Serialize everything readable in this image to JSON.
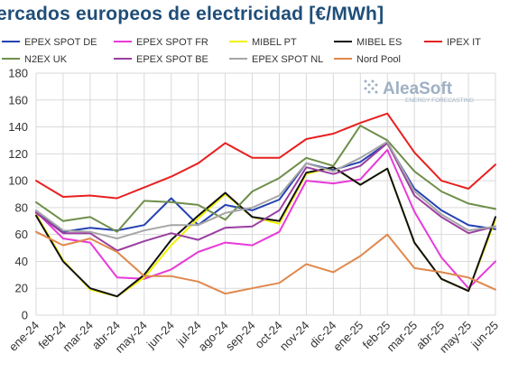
{
  "title": "ercados europeos de electricidad [€/MWh]",
  "logo": {
    "name": "AleaSoft",
    "tagline": "ENERGY FORECASTING",
    "icon": "dot-grid-icon"
  },
  "chart_data": {
    "type": "line",
    "title": "ercados europeos de electricidad [€/MWh]",
    "xlabel": "",
    "ylabel": "",
    "ylim": [
      0,
      180
    ],
    "yticks": [
      0,
      20,
      40,
      60,
      80,
      100,
      120,
      140,
      160,
      180
    ],
    "grid": true,
    "legend_position": "top",
    "categories": [
      "ene-24",
      "feb-24",
      "mar-24",
      "abr-24",
      "may-24",
      "jun-24",
      "jul-24",
      "ago-24",
      "sep-24",
      "oct-24",
      "nov-24",
      "dic-24",
      "ene-25",
      "feb-25",
      "mar-25",
      "abr-25",
      "may-25",
      "jun-25"
    ],
    "series": [
      {
        "name": "EPEX SPOT DE",
        "color": "#2541b2",
        "values": [
          77,
          62,
          65,
          63,
          67,
          87,
          67,
          82,
          78,
          86,
          113,
          108,
          114,
          128,
          94,
          78,
          67,
          64
        ]
      },
      {
        "name": "EPEX SPOT FR",
        "color": "#e83ad8",
        "values": [
          77,
          57,
          54,
          28,
          27,
          34,
          47,
          54,
          52,
          62,
          100,
          98,
          101,
          123,
          77,
          43,
          20,
          40
        ]
      },
      {
        "name": "MIBEL PT",
        "color": "#f2f200",
        "values": [
          75,
          41,
          19,
          14,
          28,
          52,
          72,
          90,
          73,
          68,
          105,
          110,
          97,
          109,
          54,
          27,
          18,
          71
        ]
      },
      {
        "name": "MIBEL ES",
        "color": "#111111",
        "values": [
          74,
          40,
          20,
          14,
          30,
          56,
          74,
          91,
          73,
          70,
          106,
          110,
          97,
          109,
          54,
          27,
          18,
          73
        ]
      },
      {
        "name": "IPEX IT",
        "color": "#e82020",
        "values": [
          100,
          88,
          89,
          87,
          95,
          103,
          113,
          128,
          117,
          117,
          131,
          135,
          143,
          150,
          121,
          100,
          94,
          112
        ]
      },
      {
        "name": "N2EX UK",
        "color": "#6e8f4a",
        "values": [
          84,
          70,
          73,
          62,
          85,
          84,
          82,
          71,
          92,
          102,
          117,
          111,
          141,
          130,
          107,
          92,
          83,
          79
        ]
      },
      {
        "name": "EPEX SPOT BE",
        "color": "#9b3fa0",
        "values": [
          76,
          61,
          61,
          48,
          55,
          61,
          56,
          65,
          66,
          78,
          110,
          105,
          111,
          128,
          89,
          73,
          61,
          66
        ]
      },
      {
        "name": "EPEX SPOT NL",
        "color": "#a6a6a6",
        "values": [
          78,
          63,
          62,
          57,
          63,
          67,
          67,
          76,
          80,
          89,
          113,
          107,
          117,
          129,
          92,
          75,
          63,
          66
        ]
      },
      {
        "name": "Nord Pool",
        "color": "#e0884d",
        "values": [
          62,
          52,
          57,
          47,
          29,
          29,
          25,
          16,
          20,
          24,
          38,
          32,
          44,
          60,
          35,
          32,
          28,
          19
        ]
      }
    ]
  }
}
